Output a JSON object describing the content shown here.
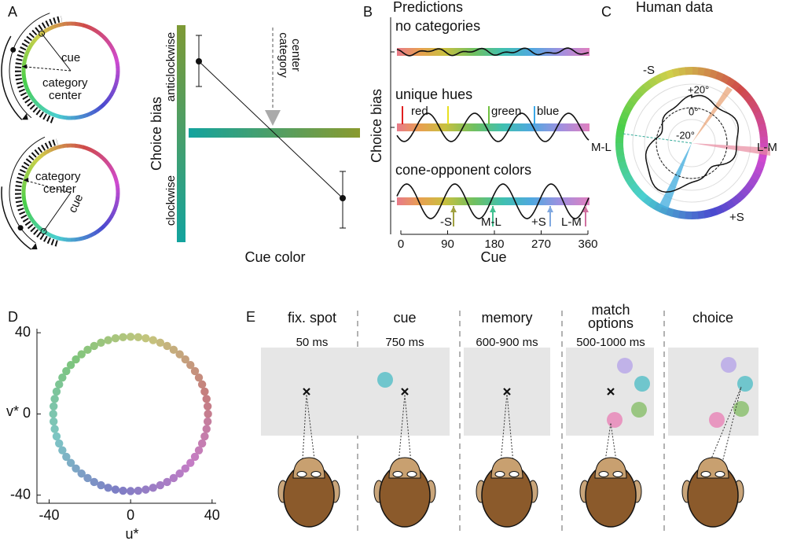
{
  "panels": {
    "a": {
      "label": "A",
      "top_ring": {
        "cue": "cue",
        "category_center": [
          "category",
          "center"
        ]
      },
      "bottom_ring": {
        "cue": "cue",
        "category_center": [
          "category",
          "center"
        ]
      },
      "y_axis_label": "Choice bias",
      "anticlockwise": "anticlockwise",
      "clockwise": "clockwise",
      "category_center": [
        "category",
        "center"
      ],
      "x_axis_label": "Cue color"
    },
    "b": {
      "label": "B",
      "title": "Predictions",
      "y_axis_label": "Choice bias",
      "x_axis_label": "Cue",
      "xlim": [
        0,
        360
      ],
      "xticks": [
        0,
        90,
        180,
        270,
        360
      ],
      "rows": [
        {
          "title": "no categories"
        },
        {
          "title": "unique hues",
          "markers": [
            "red",
            "green",
            "blue"
          ]
        },
        {
          "title": "cone-opponent colors",
          "markers": [
            "-S",
            "M-L",
            "+S",
            "L-M"
          ]
        }
      ]
    },
    "c": {
      "label": "C",
      "title": "Human data",
      "axes": [
        "-S",
        "L-M",
        "+S",
        "M-L"
      ],
      "rings": [
        "+20°",
        "0°",
        "-20°"
      ]
    },
    "d": {
      "label": "D",
      "type": "scatter",
      "x_axis_label": "u*",
      "y_axis_label": "v*",
      "xlim": [
        -46,
        42
      ],
      "ylim": [
        -44,
        42
      ],
      "xticks": [
        -40,
        0,
        40
      ],
      "yticks": [
        -40,
        0,
        40
      ],
      "ring_radius": 38,
      "ring_points": 64
    },
    "e": {
      "label": "E",
      "stages": [
        {
          "title": [
            "fix. spot"
          ],
          "duration": "50 ms"
        },
        {
          "title": [
            "cue"
          ],
          "duration": "750 ms"
        },
        {
          "title": [
            "memory"
          ],
          "duration": "600-900 ms"
        },
        {
          "title": [
            "match",
            "options"
          ],
          "duration": "500-1000 ms"
        },
        {
          "title": [
            "choice"
          ],
          "duration": ""
        }
      ]
    }
  }
}
